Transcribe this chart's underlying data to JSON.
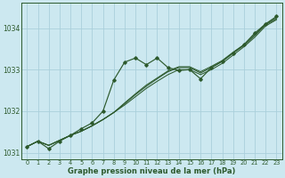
{
  "background_color": "#cce8f0",
  "grid_color": "#aacfdb",
  "line_color": "#2d5a2d",
  "xlim": [
    -0.5,
    23.5
  ],
  "ylim": [
    1030.85,
    1034.6
  ],
  "yticks": [
    1031,
    1032,
    1033,
    1034
  ],
  "xticks": [
    0,
    1,
    2,
    3,
    4,
    5,
    6,
    7,
    8,
    9,
    10,
    11,
    12,
    13,
    14,
    15,
    16,
    17,
    18,
    19,
    20,
    21,
    22,
    23
  ],
  "xlabel": "Graphe pression niveau de la mer (hPa)",
  "series_smooth": [
    [
      1031.15,
      1031.28,
      1031.18,
      1031.3,
      1031.42,
      1031.52,
      1031.65,
      1031.8,
      1031.97,
      1032.15,
      1032.35,
      1032.55,
      1032.72,
      1032.88,
      1033.0,
      1033.0,
      1032.88,
      1033.0,
      1033.15,
      1033.35,
      1033.55,
      1033.78,
      1034.05,
      1034.2
    ],
    [
      1031.15,
      1031.28,
      1031.18,
      1031.3,
      1031.42,
      1031.52,
      1031.65,
      1031.8,
      1031.97,
      1032.18,
      1032.4,
      1032.6,
      1032.78,
      1032.95,
      1033.05,
      1033.05,
      1032.92,
      1033.05,
      1033.2,
      1033.4,
      1033.58,
      1033.82,
      1034.08,
      1034.22
    ],
    [
      1031.15,
      1031.28,
      1031.18,
      1031.3,
      1031.42,
      1031.52,
      1031.65,
      1031.8,
      1031.97,
      1032.2,
      1032.42,
      1032.63,
      1032.8,
      1032.97,
      1033.07,
      1033.07,
      1032.95,
      1033.08,
      1033.22,
      1033.42,
      1033.6,
      1033.85,
      1034.1,
      1034.25
    ]
  ],
  "series_marked": [
    [
      1031.15,
      1031.28,
      1031.1,
      1031.28,
      1031.42,
      1031.58,
      1031.72,
      1032.0,
      1032.75,
      1033.18,
      1033.28,
      1033.12,
      1033.28,
      1033.05,
      1032.98,
      1033.0,
      1032.78,
      1033.05,
      1033.2,
      1033.4,
      1033.6,
      1033.88,
      1034.1,
      1034.28
    ]
  ]
}
